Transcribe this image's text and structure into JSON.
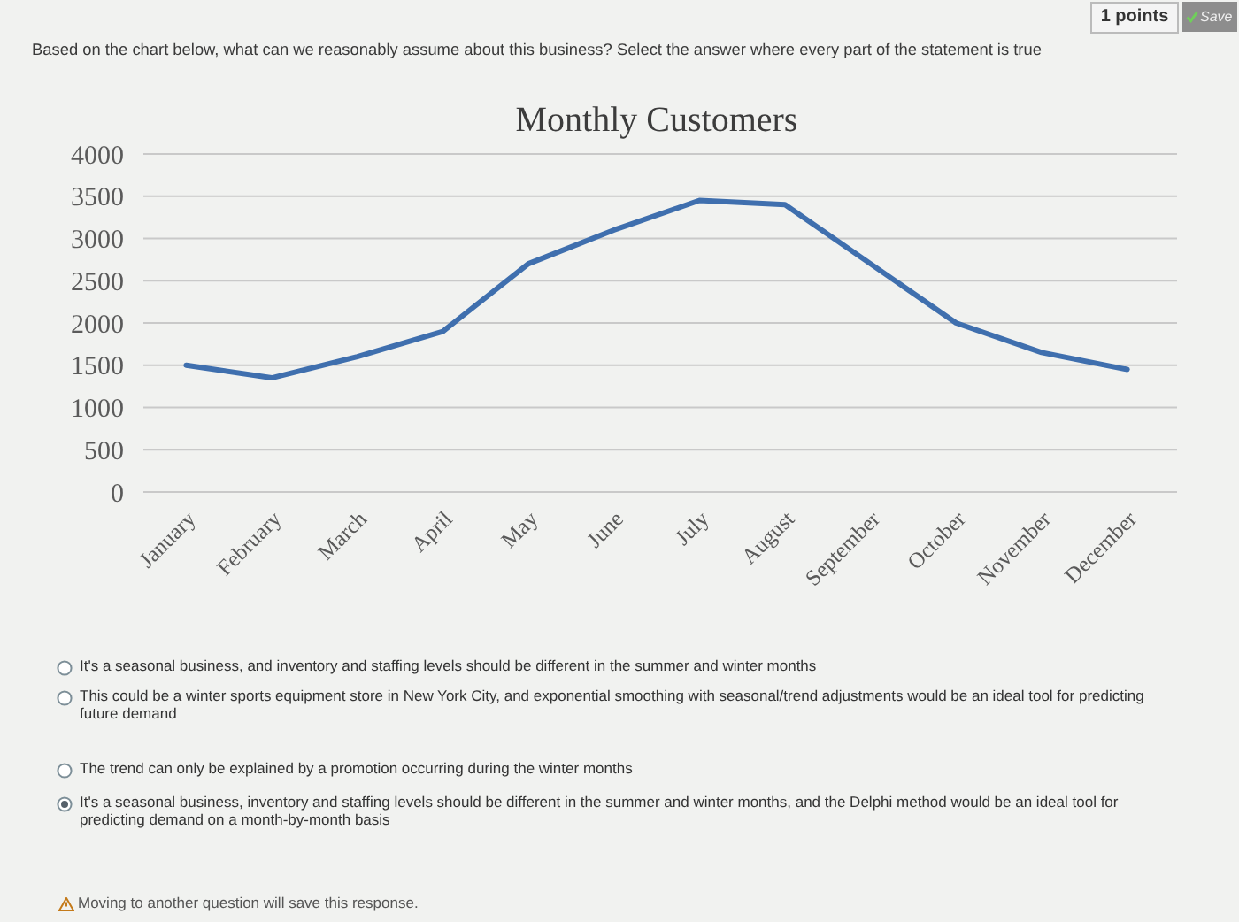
{
  "chart_data": {
    "type": "line",
    "title": "Monthly Customers",
    "categories": [
      "January",
      "February",
      "March",
      "April",
      "May",
      "June",
      "July",
      "August",
      "September",
      "October",
      "November",
      "December"
    ],
    "series": [
      {
        "color": "#3f6fae",
        "values": [
          1500,
          1350,
          1600,
          1900,
          2700,
          3100,
          3450,
          3400,
          2700,
          2000,
          1650,
          1450
        ]
      }
    ],
    "ylim": [
      0,
      4000
    ],
    "yticks": [
      0,
      500,
      1000,
      1500,
      2000,
      2500,
      3000,
      3500,
      4000
    ],
    "grid": "y",
    "annotations": [
      "Based on the chart below, what can we reasonably assume about this business? Select the answer where every part of the statement is true",
      "1 points",
      "Save",
      "It's a seasonal business, and inventory and staffing levels should be different in the summer and winter months",
      "This could be a winter sports equipment store in New York City, and exponential smoothing with seasonal/trend adjustments would be an ideal tool for predicting future demand",
      "The trend can only be explained by a promotion occurring during the winter months",
      "It's a seasonal business, inventory and staffing levels should be different in the summer and winter months, and the Delphi method would be an ideal tool for predicting demand on a month-by-month basis",
      "Moving to another question will save this response."
    ]
  }
}
